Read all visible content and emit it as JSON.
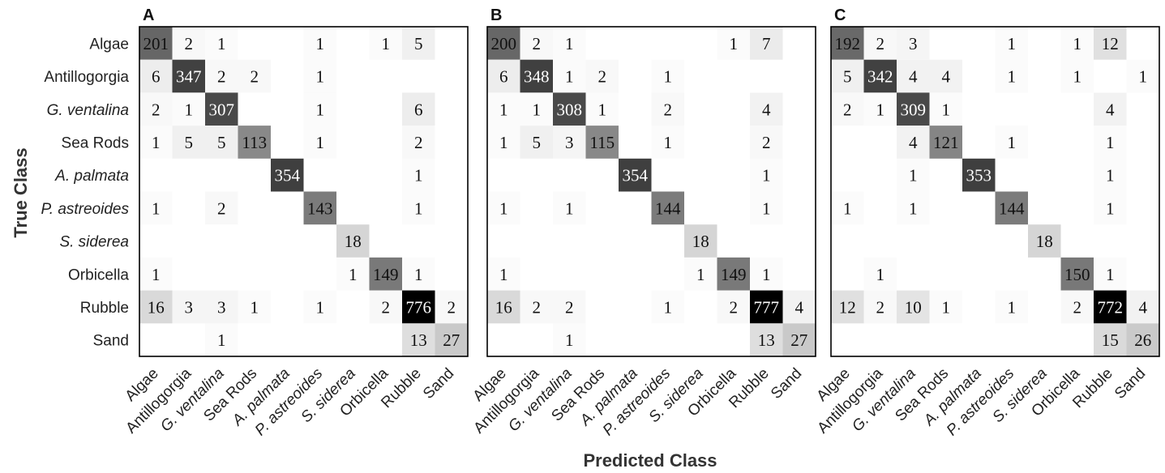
{
  "chart_data": {
    "type": "heatmap",
    "xlabel": "Predicted Class",
    "ylabel": "True Class",
    "classes": [
      "Algae",
      "Antillogorgia",
      "G. ventalina",
      "Sea Rods",
      "A. palmata",
      "P. astreoides",
      "S. siderea",
      "Orbicella",
      "Rubble",
      "Sand"
    ],
    "italic_classes": [
      "G. ventalina",
      "A. palmata",
      "P. astreoides",
      "S. siderea"
    ],
    "color_scale": "greys",
    "panels": [
      {
        "label": "A",
        "matrix": [
          [
            201,
            2,
            1,
            null,
            null,
            1,
            null,
            1,
            5,
            null
          ],
          [
            6,
            347,
            2,
            2,
            null,
            1,
            null,
            null,
            null,
            null
          ],
          [
            2,
            1,
            307,
            null,
            null,
            1,
            null,
            null,
            6,
            null
          ],
          [
            1,
            5,
            5,
            113,
            null,
            1,
            null,
            null,
            2,
            null
          ],
          [
            null,
            null,
            null,
            null,
            354,
            null,
            null,
            null,
            1,
            null
          ],
          [
            1,
            null,
            2,
            null,
            null,
            143,
            null,
            null,
            1,
            null
          ],
          [
            null,
            null,
            null,
            null,
            null,
            null,
            18,
            null,
            null,
            null
          ],
          [
            1,
            null,
            null,
            null,
            null,
            null,
            1,
            149,
            1,
            null
          ],
          [
            16,
            3,
            3,
            1,
            null,
            1,
            null,
            2,
            776,
            2
          ],
          [
            null,
            null,
            1,
            null,
            null,
            null,
            null,
            null,
            13,
            27
          ]
        ]
      },
      {
        "label": "B",
        "matrix": [
          [
            200,
            2,
            1,
            null,
            null,
            null,
            null,
            1,
            7,
            null
          ],
          [
            6,
            348,
            1,
            2,
            null,
            1,
            null,
            null,
            null,
            null
          ],
          [
            1,
            1,
            308,
            1,
            null,
            2,
            null,
            null,
            4,
            null
          ],
          [
            1,
            5,
            3,
            115,
            null,
            1,
            null,
            null,
            2,
            null
          ],
          [
            null,
            null,
            null,
            null,
            354,
            null,
            null,
            null,
            1,
            null
          ],
          [
            1,
            null,
            1,
            null,
            null,
            144,
            null,
            null,
            1,
            null
          ],
          [
            null,
            null,
            null,
            null,
            null,
            null,
            18,
            null,
            null,
            null
          ],
          [
            1,
            null,
            null,
            null,
            null,
            null,
            1,
            149,
            1,
            null
          ],
          [
            16,
            2,
            2,
            null,
            null,
            1,
            null,
            2,
            777,
            4
          ],
          [
            null,
            null,
            1,
            null,
            null,
            null,
            null,
            null,
            13,
            27
          ]
        ]
      },
      {
        "label": "C",
        "matrix": [
          [
            192,
            2,
            3,
            null,
            null,
            1,
            null,
            1,
            12,
            null
          ],
          [
            5,
            342,
            4,
            4,
            null,
            1,
            null,
            1,
            null,
            1
          ],
          [
            2,
            1,
            309,
            1,
            null,
            null,
            null,
            null,
            4,
            null
          ],
          [
            null,
            null,
            4,
            121,
            null,
            1,
            null,
            null,
            1,
            null
          ],
          [
            null,
            null,
            1,
            null,
            353,
            null,
            null,
            null,
            1,
            null
          ],
          [
            1,
            null,
            1,
            null,
            null,
            144,
            null,
            null,
            1,
            null
          ],
          [
            null,
            null,
            null,
            null,
            null,
            null,
            18,
            null,
            null,
            null
          ],
          [
            null,
            1,
            null,
            null,
            null,
            null,
            null,
            150,
            1,
            null
          ],
          [
            12,
            2,
            10,
            1,
            null,
            1,
            null,
            2,
            772,
            4
          ],
          [
            null,
            null,
            null,
            null,
            null,
            null,
            null,
            null,
            15,
            26
          ]
        ]
      }
    ]
  }
}
